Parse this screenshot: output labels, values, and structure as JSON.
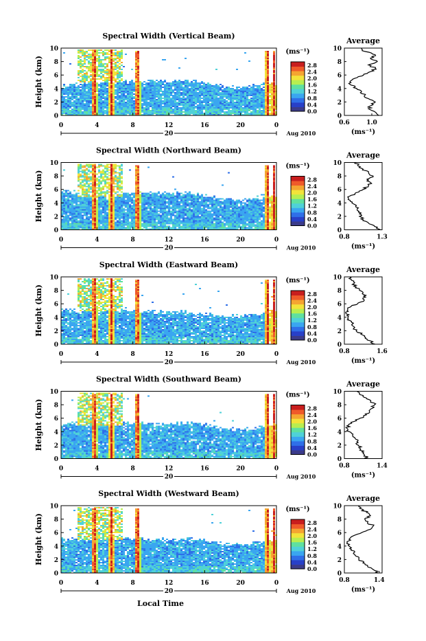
{
  "figure": {
    "xlabel": "Local Time",
    "date_label": "Aug 2010",
    "day_label": "20",
    "ylabel": "Height (km)",
    "colorbar_unit": "(ms⁻¹)",
    "avg_title": "Average",
    "avg_unit": "(ms⁻¹)"
  },
  "colors": {
    "scale": [
      "#3b3b8a",
      "#2840c8",
      "#2f6fe8",
      "#3aa6f0",
      "#4fd1d8",
      "#5fe0a0",
      "#b8ee50",
      "#f3e33a",
      "#f5a531",
      "#ef5a2a",
      "#c81e1e"
    ],
    "background": "#ffffff",
    "ink": "#000000"
  },
  "chart_data": [
    {
      "type": "heatmap",
      "title": "Spectral Width (Vertical Beam)",
      "x_ticks": [
        "0",
        "4",
        "8",
        "12",
        "16",
        "20",
        "0"
      ],
      "xlim": [
        0,
        24
      ],
      "y_ticks": [
        "0",
        "2",
        "4",
        "6",
        "8",
        "10"
      ],
      "ylim": [
        0,
        10
      ],
      "colorbar_ticks": [
        "0.0",
        "0.4",
        "0.8",
        "1.2",
        "1.6",
        "2.0",
        "2.4",
        "2.8"
      ],
      "colorbar_range": [
        0,
        3.0
      ],
      "echo_top_km": [
        [
          0,
          4.4
        ],
        [
          2,
          4.8
        ],
        [
          4,
          5.4
        ],
        [
          6,
          5.6
        ],
        [
          8,
          5.3
        ],
        [
          10,
          5.2
        ],
        [
          12,
          5.2
        ],
        [
          14,
          5.4
        ],
        [
          16,
          5.0
        ],
        [
          18,
          4.4
        ],
        [
          20,
          4.2
        ],
        [
          22,
          4.6
        ],
        [
          24,
          5.0
        ]
      ],
      "average_profile": {
        "x_ticks": [
          "0.6",
          "1.0"
        ],
        "xlim": [
          0.6,
          1.15
        ],
        "y_ticks": [
          "0",
          "2",
          "4",
          "6",
          "8",
          "10"
        ],
        "ylim": [
          0,
          10
        ],
        "height_km": [
          0,
          0.5,
          1,
          1.5,
          2,
          2.5,
          3,
          3.5,
          4,
          4.5,
          5,
          5.5,
          6,
          6.5,
          7,
          7.5,
          8,
          8.5,
          9,
          9.5,
          10
        ],
        "width_ms": [
          1.1,
          1.05,
          0.95,
          1.0,
          1.05,
          0.95,
          0.9,
          0.85,
          0.78,
          0.7,
          0.68,
          0.75,
          0.88,
          0.98,
          1.05,
          0.95,
          1.08,
          0.98,
          1.05,
          0.9,
          0.85
        ]
      }
    },
    {
      "type": "heatmap",
      "title": "Spectral Width (Northward Beam)",
      "x_ticks": [
        "0",
        "4",
        "8",
        "12",
        "16",
        "20",
        "0"
      ],
      "xlim": [
        0,
        24
      ],
      "y_ticks": [
        "0",
        "2",
        "4",
        "6",
        "8",
        "10"
      ],
      "ylim": [
        0,
        10
      ],
      "colorbar_ticks": [
        "0.0",
        "0.4",
        "0.8",
        "1.2",
        "1.6",
        "2.0",
        "2.4",
        "2.8"
      ],
      "colorbar_range": [
        0,
        3.0
      ],
      "echo_top_km": [
        [
          0,
          5.8
        ],
        [
          2,
          5.6
        ],
        [
          4,
          5.7
        ],
        [
          6,
          5.8
        ],
        [
          8,
          5.6
        ],
        [
          10,
          5.6
        ],
        [
          12,
          5.5
        ],
        [
          14,
          5.6
        ],
        [
          16,
          5.2
        ],
        [
          18,
          4.7
        ],
        [
          20,
          4.5
        ],
        [
          22,
          4.8
        ],
        [
          24,
          5.3
        ]
      ],
      "average_profile": {
        "x_ticks": [
          "0.8",
          "1.3"
        ],
        "xlim": [
          0.8,
          1.3
        ],
        "y_ticks": [
          "0",
          "2",
          "4",
          "6",
          "8",
          "10"
        ],
        "ylim": [
          0,
          10
        ],
        "height_km": [
          0,
          0.5,
          1,
          1.5,
          2,
          2.5,
          3,
          3.5,
          4,
          4.5,
          5,
          5.5,
          6,
          6.5,
          7,
          7.5,
          8,
          8.5,
          9,
          9.5,
          10
        ],
        "width_ms": [
          1.28,
          1.2,
          1.12,
          1.05,
          1.0,
          1.02,
          0.97,
          0.95,
          0.9,
          0.85,
          0.87,
          0.95,
          1.05,
          1.12,
          1.15,
          1.1,
          1.18,
          1.12,
          1.05,
          0.98,
          0.95
        ]
      }
    },
    {
      "type": "heatmap",
      "title": "Spectral Width (Eastward Beam)",
      "x_ticks": [
        "0",
        "4",
        "8",
        "12",
        "16",
        "20",
        "0"
      ],
      "xlim": [
        0,
        24
      ],
      "y_ticks": [
        "0",
        "2",
        "4",
        "6",
        "8",
        "10"
      ],
      "ylim": [
        0,
        10
      ],
      "colorbar_ticks": [
        "0.0",
        "0.4",
        "0.8",
        "1.2",
        "1.6",
        "2.0",
        "2.4",
        "2.8"
      ],
      "colorbar_range": [
        0,
        3.0
      ],
      "echo_top_km": [
        [
          0,
          5.4
        ],
        [
          2,
          5.0
        ],
        [
          4,
          5.4
        ],
        [
          6,
          5.5
        ],
        [
          8,
          5.1
        ],
        [
          10,
          5.0
        ],
        [
          12,
          4.9
        ],
        [
          14,
          4.9
        ],
        [
          16,
          4.6
        ],
        [
          18,
          4.3
        ],
        [
          20,
          4.2
        ],
        [
          22,
          4.6
        ],
        [
          24,
          5.2
        ]
      ],
      "average_profile": {
        "x_ticks": [
          "0.8",
          "1.6"
        ],
        "xlim": [
          0.8,
          1.6
        ],
        "y_ticks": [
          "0",
          "2",
          "4",
          "6",
          "8",
          "10"
        ],
        "ylim": [
          0,
          10
        ],
        "height_km": [
          0,
          0.5,
          1,
          1.5,
          2,
          2.5,
          3,
          3.5,
          4,
          4.5,
          5,
          5.5,
          6,
          6.5,
          7,
          7.5,
          8,
          8.5,
          9,
          9.5,
          10
        ],
        "width_ms": [
          1.45,
          1.35,
          1.25,
          1.15,
          1.05,
          1.02,
          0.97,
          0.92,
          0.88,
          0.84,
          0.86,
          0.92,
          1.08,
          1.22,
          1.25,
          1.18,
          1.12,
          1.05,
          1.0,
          0.95,
          0.92
        ]
      }
    },
    {
      "type": "heatmap",
      "title": "Spectral Width (Southward Beam)",
      "x_ticks": [
        "0",
        "4",
        "8",
        "12",
        "16",
        "20",
        "0"
      ],
      "xlim": [
        0,
        24
      ],
      "y_ticks": [
        "0",
        "2",
        "4",
        "6",
        "8",
        "10"
      ],
      "ylim": [
        0,
        10
      ],
      "colorbar_ticks": [
        "0.0",
        "0.4",
        "0.8",
        "1.2",
        "1.6",
        "2.0",
        "2.4",
        "2.8"
      ],
      "colorbar_range": [
        0,
        3.0
      ],
      "echo_top_km": [
        [
          0,
          5.2
        ],
        [
          2,
          5.4
        ],
        [
          4,
          5.6
        ],
        [
          6,
          5.9
        ],
        [
          8,
          5.4
        ],
        [
          10,
          5.3
        ],
        [
          12,
          5.3
        ],
        [
          14,
          5.4
        ],
        [
          16,
          5.1
        ],
        [
          18,
          4.6
        ],
        [
          20,
          4.4
        ],
        [
          22,
          4.7
        ],
        [
          24,
          5.2
        ]
      ],
      "average_profile": {
        "x_ticks": [
          "0.8",
          "1.4"
        ],
        "xlim": [
          0.8,
          1.4
        ],
        "y_ticks": [
          "0",
          "2",
          "4",
          "6",
          "8",
          "10"
        ],
        "ylim": [
          0,
          10
        ],
        "height_km": [
          0,
          0.5,
          1,
          1.5,
          2,
          2.5,
          3,
          3.5,
          4,
          4.5,
          5,
          5.5,
          6,
          6.5,
          7,
          7.5,
          8,
          8.5,
          9,
          9.5,
          10
        ],
        "width_ms": [
          1.18,
          1.12,
          1.08,
          1.05,
          1.02,
          1.0,
          0.97,
          0.93,
          0.88,
          0.84,
          0.87,
          0.95,
          1.05,
          1.15,
          1.2,
          1.25,
          1.28,
          1.22,
          1.15,
          1.05,
          1.0
        ]
      }
    },
    {
      "type": "heatmap",
      "title": "Spectral Width (Westward Beam)",
      "x_ticks": [
        "0",
        "4",
        "8",
        "12",
        "16",
        "20",
        "0"
      ],
      "xlim": [
        0,
        24
      ],
      "y_ticks": [
        "0",
        "2",
        "4",
        "6",
        "8",
        "10"
      ],
      "ylim": [
        0,
        10
      ],
      "colorbar_ticks": [
        "0.0",
        "0.4",
        "0.8",
        "1.2",
        "1.6",
        "2.0",
        "2.4",
        "2.8"
      ],
      "colorbar_range": [
        0,
        3.0
      ],
      "echo_top_km": [
        [
          0,
          5.4
        ],
        [
          2,
          5.0
        ],
        [
          4,
          5.3
        ],
        [
          6,
          5.4
        ],
        [
          8,
          5.2
        ],
        [
          10,
          5.1
        ],
        [
          12,
          5.1
        ],
        [
          14,
          5.2
        ],
        [
          16,
          5.0
        ],
        [
          18,
          4.4
        ],
        [
          20,
          4.3
        ],
        [
          22,
          4.6
        ],
        [
          24,
          5.2
        ]
      ],
      "average_profile": {
        "x_ticks": [
          "0.8",
          "1.4"
        ],
        "xlim": [
          0.8,
          1.45
        ],
        "y_ticks": [
          "0",
          "2",
          "4",
          "6",
          "8",
          "10"
        ],
        "ylim": [
          0,
          10
        ],
        "height_km": [
          0,
          0.5,
          1,
          1.5,
          2,
          2.5,
          3,
          3.5,
          4,
          4.5,
          5,
          5.5,
          6,
          6.5,
          7,
          7.5,
          8,
          8.5,
          9,
          9.5,
          10
        ],
        "width_ms": [
          1.38,
          1.3,
          1.2,
          1.12,
          1.05,
          1.0,
          0.96,
          0.92,
          0.88,
          0.85,
          0.88,
          0.95,
          1.1,
          1.25,
          1.3,
          1.2,
          1.15,
          1.25,
          1.18,
          1.1,
          1.05
        ]
      }
    }
  ]
}
